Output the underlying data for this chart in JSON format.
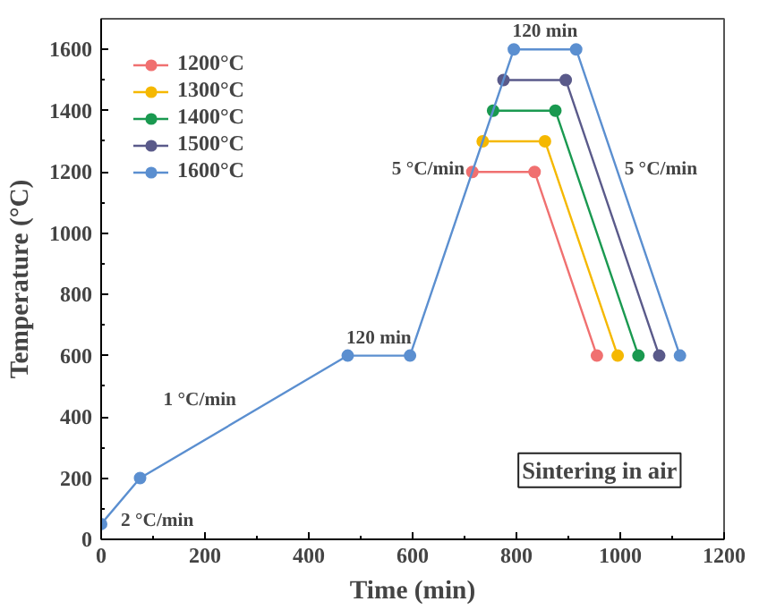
{
  "chart_data": {
    "type": "line",
    "xlabel": "Time (min)",
    "ylabel": "Temperature (°C)",
    "xlim": [
      0,
      1200
    ],
    "ylim": [
      0,
      1700
    ],
    "xticks": [
      0,
      200,
      400,
      600,
      800,
      1000,
      1200
    ],
    "yticks": [
      0,
      200,
      400,
      600,
      800,
      1000,
      1200,
      1400,
      1600
    ],
    "grid": false,
    "legend": "top left",
    "marker": "circle",
    "line_style": "solid",
    "series": [
      {
        "name": "1200°C",
        "color": "#f07070",
        "x": [
          715,
          835,
          955
        ],
        "values": [
          1200,
          1200,
          600
        ]
      },
      {
        "name": "1300°C",
        "color": "#f5b800",
        "x": [
          735,
          855,
          995
        ],
        "values": [
          1300,
          1300,
          600
        ]
      },
      {
        "name": "1400°C",
        "color": "#1a9950",
        "x": [
          755,
          875,
          1035
        ],
        "values": [
          1400,
          1400,
          600
        ]
      },
      {
        "name": "1500°C",
        "color": "#5a5a8a",
        "x": [
          775,
          895,
          1075
        ],
        "values": [
          1500,
          1500,
          600
        ]
      },
      {
        "name": "1600°C",
        "color": "#5b8fd0",
        "x": [
          0,
          75,
          475,
          595,
          795,
          915,
          1115
        ],
        "values": [
          50,
          200,
          600,
          600,
          1600,
          1600,
          600
        ]
      }
    ],
    "annotations": [
      "2 °C/min",
      "1 °C/min",
      {
        "text": "120 min",
        "x": 535,
        "y": 600
      },
      "5 °C/min",
      {
        "text": "120 min",
        "x": 855,
        "y": 1600
      },
      "5 °C/min",
      "Sintering in air"
    ]
  }
}
